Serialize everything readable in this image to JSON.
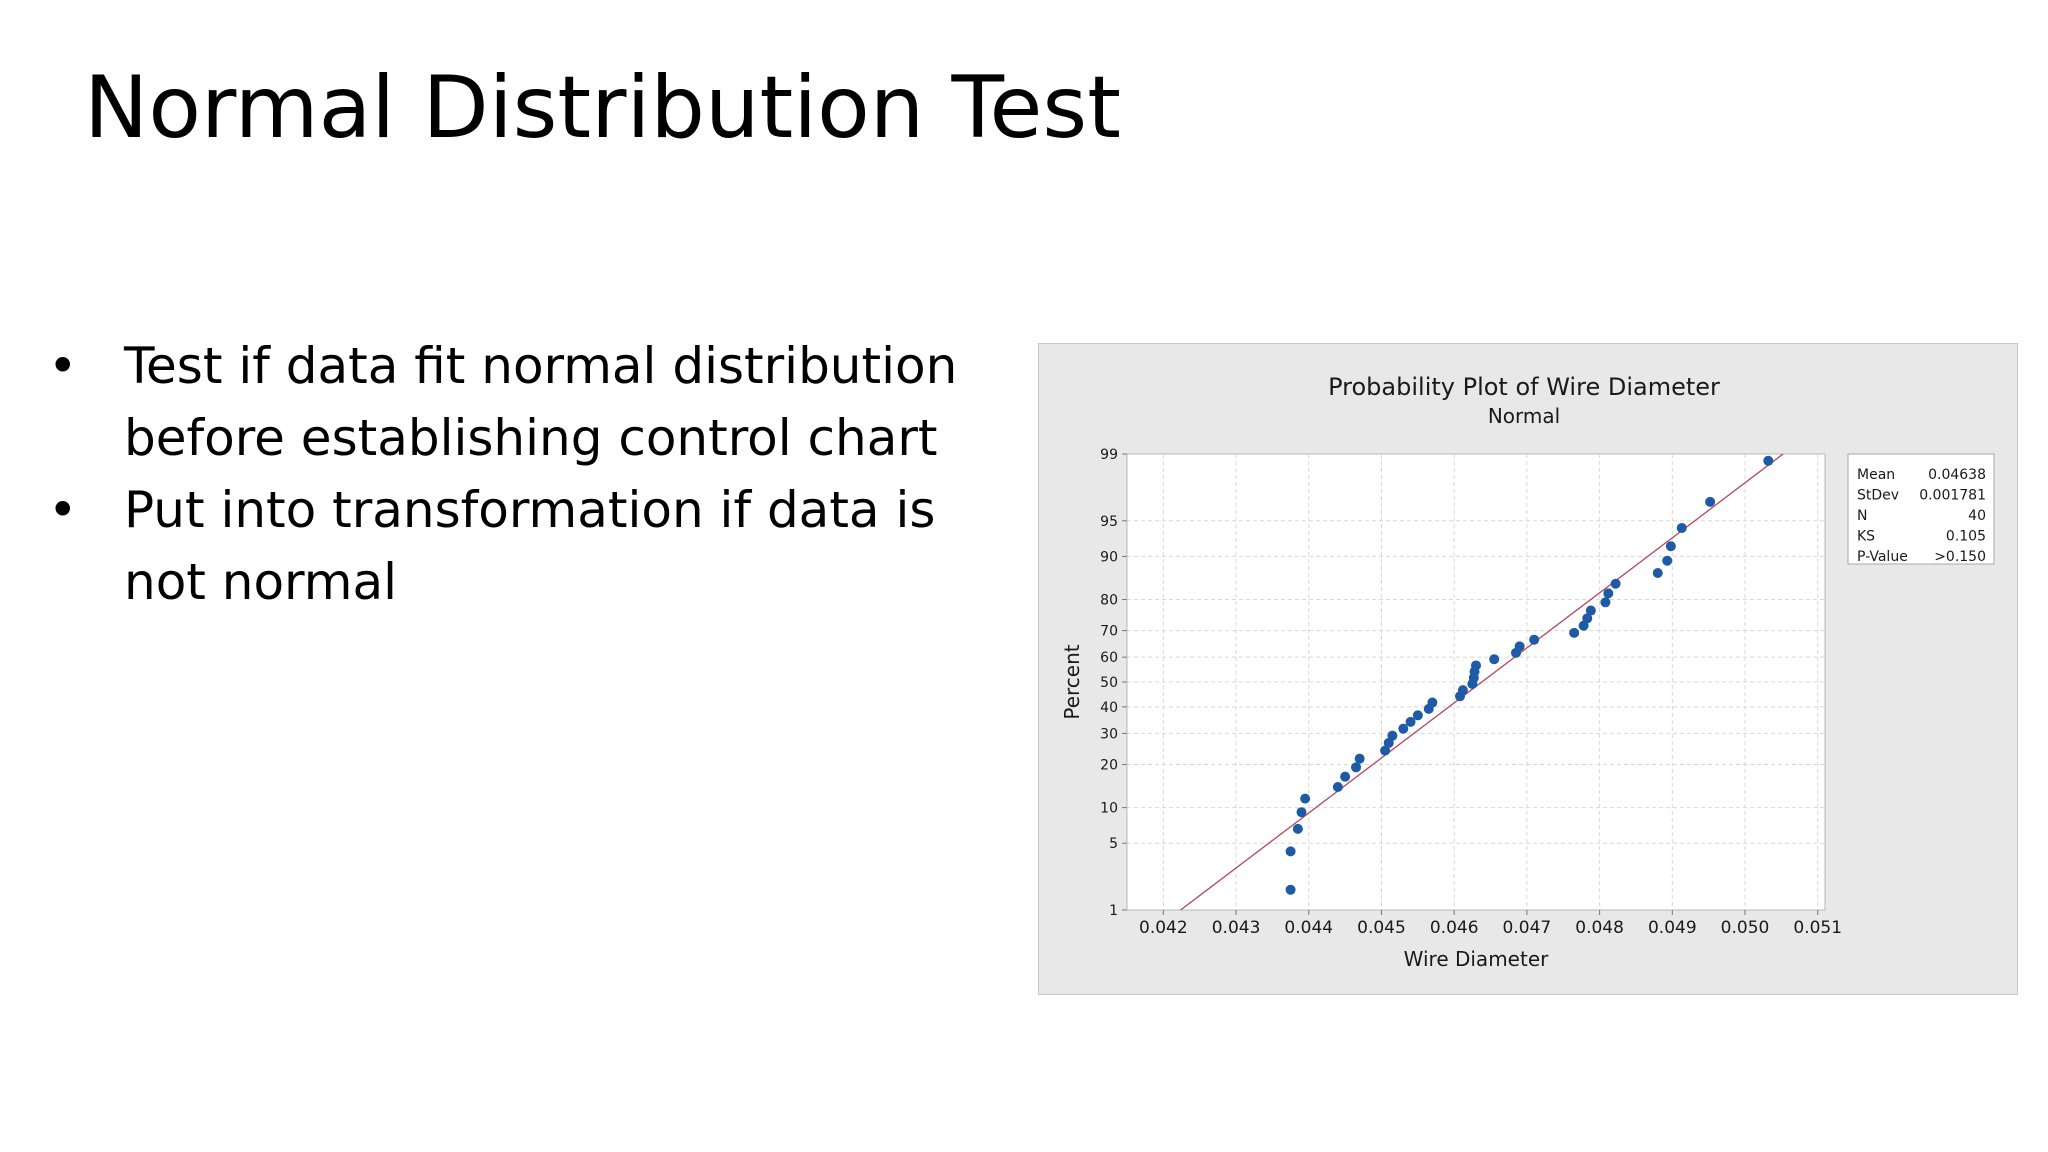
{
  "slide": {
    "title": "Normal Distribution Test",
    "bullets": [
      "Test if data fit normal distribution before establishing control chart",
      "Put into transformation if data is not normal"
    ],
    "bullet_symbol": "•"
  },
  "chart_data": {
    "type": "scatter",
    "title": "Probability Plot of Wire Diameter",
    "subtitle": "Normal",
    "xlabel": "Wire Diameter",
    "ylabel": "Percent",
    "y_scale": "normal-probability",
    "xlim": [
      0.0415,
      0.0511
    ],
    "x_ticks": [
      "0.042",
      "0.043",
      "0.044",
      "0.045",
      "0.046",
      "0.047",
      "0.048",
      "0.049",
      "0.050",
      "0.051"
    ],
    "y_ticks": [
      1,
      5,
      10,
      20,
      30,
      40,
      50,
      60,
      70,
      80,
      90,
      95,
      99
    ],
    "grid": true,
    "point_color": "#1f5aa6",
    "fit_line_color": "#b5455a",
    "fit_line": {
      "mean": 0.04638,
      "stdev": 0.001781
    },
    "legend_placement": "right",
    "stats": [
      {
        "label": "Mean",
        "value": "0.04638"
      },
      {
        "label": "StDev",
        "value": "0.001781"
      },
      {
        "label": "N",
        "value": "40"
      },
      {
        "label": "KS",
        "value": "0.105"
      },
      {
        "label": "P-Value",
        "value": ">0.150"
      }
    ],
    "points": [
      {
        "x": 0.04375,
        "y": 1.7
      },
      {
        "x": 0.04375,
        "y": 4.2
      },
      {
        "x": 0.04385,
        "y": 6.7
      },
      {
        "x": 0.0439,
        "y": 9.2
      },
      {
        "x": 0.04395,
        "y": 11.7
      },
      {
        "x": 0.0444,
        "y": 14.2
      },
      {
        "x": 0.0445,
        "y": 16.7
      },
      {
        "x": 0.04465,
        "y": 19.2
      },
      {
        "x": 0.0447,
        "y": 21.7
      },
      {
        "x": 0.04505,
        "y": 24.2
      },
      {
        "x": 0.0451,
        "y": 26.7
      },
      {
        "x": 0.04515,
        "y": 29.2
      },
      {
        "x": 0.0453,
        "y": 31.7
      },
      {
        "x": 0.0454,
        "y": 34.2
      },
      {
        "x": 0.0455,
        "y": 36.7
      },
      {
        "x": 0.04565,
        "y": 39.2
      },
      {
        "x": 0.0457,
        "y": 41.7
      },
      {
        "x": 0.04608,
        "y": 44.2
      },
      {
        "x": 0.04612,
        "y": 46.7
      },
      {
        "x": 0.04625,
        "y": 49.2
      },
      {
        "x": 0.04627,
        "y": 51.7
      },
      {
        "x": 0.04628,
        "y": 54.2
      },
      {
        "x": 0.0463,
        "y": 56.7
      },
      {
        "x": 0.04655,
        "y": 59.2
      },
      {
        "x": 0.04685,
        "y": 61.7
      },
      {
        "x": 0.0469,
        "y": 64.2
      },
      {
        "x": 0.0471,
        "y": 66.7
      },
      {
        "x": 0.04765,
        "y": 69.2
      },
      {
        "x": 0.04778,
        "y": 71.7
      },
      {
        "x": 0.04783,
        "y": 74.2
      },
      {
        "x": 0.04788,
        "y": 76.7
      },
      {
        "x": 0.04808,
        "y": 79.2
      },
      {
        "x": 0.04812,
        "y": 81.7
      },
      {
        "x": 0.04822,
        "y": 84.2
      },
      {
        "x": 0.0488,
        "y": 86.7
      },
      {
        "x": 0.04893,
        "y": 89.2
      },
      {
        "x": 0.04898,
        "y": 91.7
      },
      {
        "x": 0.04913,
        "y": 94.2
      },
      {
        "x": 0.04952,
        "y": 96.7
      },
      {
        "x": 0.05032,
        "y": 98.8
      }
    ]
  }
}
